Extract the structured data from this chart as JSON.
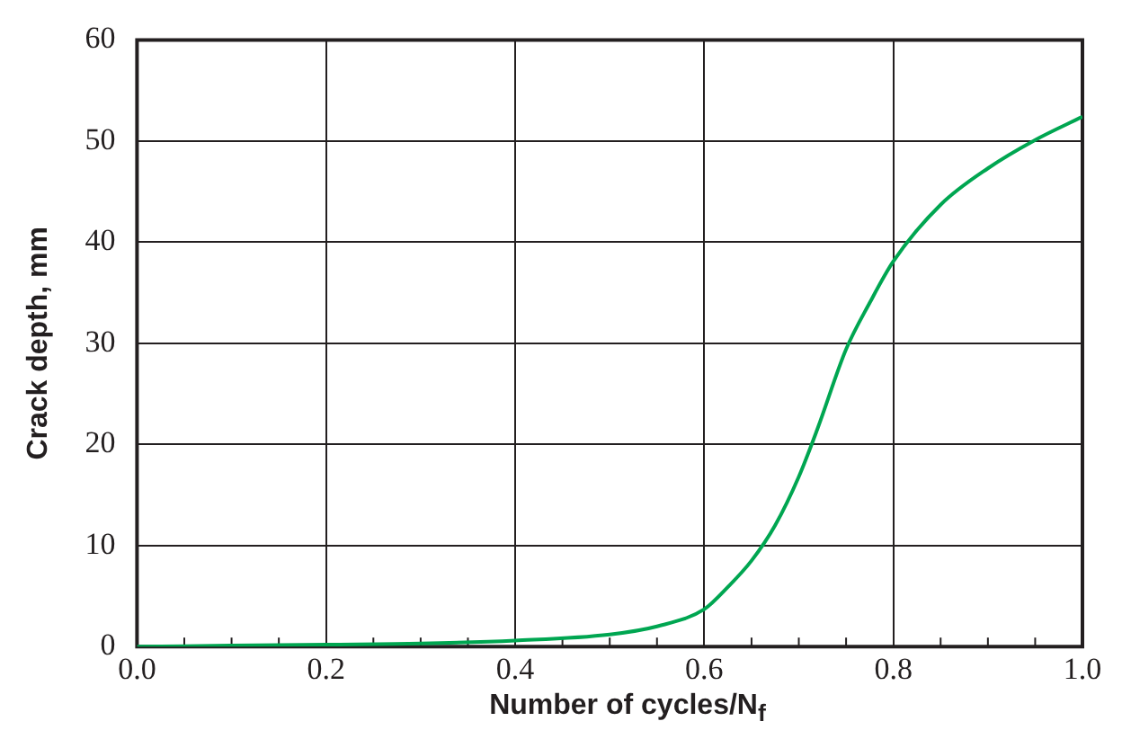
{
  "chart_data": {
    "type": "line",
    "xlabel": "Number of cycles/N$_{f}$",
    "ylabel": "Crack depth, mm",
    "x": [
      0,
      0.1,
      0.2,
      0.3,
      0.4,
      0.5,
      0.55,
      0.6,
      0.625,
      0.65,
      0.675,
      0.7,
      0.72,
      0.75,
      0.775,
      0.8,
      0.85,
      0.9,
      0.95,
      1.0
    ],
    "series": [
      {
        "color": "#00a651",
        "values": [
          0,
          0.1,
          0.2,
          0.3,
          0.6,
          1.2,
          2,
          3.7,
          5.9,
          8.5,
          12,
          16.8,
          21.6,
          29.4,
          34,
          38.1,
          43.7,
          47.3,
          50.1,
          52.4
        ]
      }
    ],
    "xlim": [
      0,
      1
    ],
    "ylim": [
      0,
      60
    ],
    "xticks": [
      {
        "value": 0,
        "label": "0.0"
      },
      {
        "value": 0.05,
        "label": null
      },
      {
        "value": 0.1,
        "label": null
      },
      {
        "value": 0.15,
        "label": null
      },
      {
        "value": 0.2,
        "label": "0.2"
      },
      {
        "value": 0.25,
        "label": null
      },
      {
        "value": 0.3,
        "label": null
      },
      {
        "value": 0.35,
        "label": null
      },
      {
        "value": 0.4,
        "label": "0.4"
      },
      {
        "value": 0.45,
        "label": null
      },
      {
        "value": 0.5,
        "label": null
      },
      {
        "value": 0.55,
        "label": null
      },
      {
        "value": 0.6,
        "label": "0.6"
      },
      {
        "value": 0.65,
        "label": null
      },
      {
        "value": 0.7,
        "label": null
      },
      {
        "value": 0.75,
        "label": null
      },
      {
        "value": 0.8,
        "label": "0.8"
      },
      {
        "value": 0.85,
        "label": null
      },
      {
        "value": 0.9,
        "label": null
      },
      {
        "value": 0.95,
        "label": null
      },
      {
        "value": 1,
        "label": "1.0"
      }
    ],
    "yticks": [
      0,
      10,
      20,
      30,
      40,
      50,
      60
    ],
    "grid": true,
    "legend": false,
    "marker": "none",
    "line_style": "solid"
  }
}
